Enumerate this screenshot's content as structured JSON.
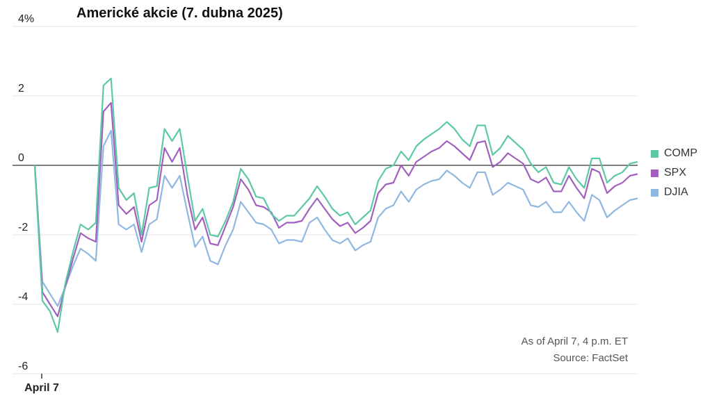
{
  "chart_data": {
    "type": "line",
    "title": "Americké akcie (7. dubna 2025)",
    "ylim": [
      -6,
      4
    ],
    "yticks": [
      {
        "value": 4,
        "label": "4%"
      },
      {
        "value": 2,
        "label": "2"
      },
      {
        "value": 0,
        "label": "0"
      },
      {
        "value": -2,
        "label": "-2"
      },
      {
        "value": -4,
        "label": "-4"
      },
      {
        "value": -6,
        "label": "-6"
      }
    ],
    "x_tick_label": "April 7",
    "grid": true,
    "legend_position": "right",
    "series": [
      {
        "name": "COMP",
        "color": "#5cc8a5",
        "values": [
          0,
          -3.9,
          -4.2,
          -4.8,
          -3.4,
          -2.5,
          -1.7,
          -1.85,
          -1.65,
          2.3,
          2.5,
          -0.65,
          -1.0,
          -0.8,
          -2.0,
          -0.65,
          -0.6,
          1.05,
          0.7,
          1.05,
          -0.3,
          -1.6,
          -1.25,
          -2.0,
          -2.05,
          -1.6,
          -1.05,
          -0.1,
          -0.4,
          -0.9,
          -0.95,
          -1.4,
          -1.6,
          -1.45,
          -1.45,
          -1.2,
          -0.95,
          -0.6,
          -0.9,
          -1.25,
          -1.45,
          -1.35,
          -1.7,
          -1.5,
          -1.3,
          -0.45,
          -0.1,
          0.0,
          0.4,
          0.15,
          0.55,
          0.75,
          0.9,
          1.05,
          1.25,
          1.05,
          0.75,
          0.55,
          1.15,
          1.15,
          0.3,
          0.5,
          0.85,
          0.65,
          0.45,
          0.05,
          -0.2,
          -0.05,
          -0.5,
          -0.55,
          -0.05,
          -0.4,
          -0.65,
          0.2,
          0.2,
          -0.5,
          -0.3,
          -0.2,
          0.05,
          0.1
        ]
      },
      {
        "name": "SPX",
        "color": "#a25fbf",
        "values": [
          0,
          -3.65,
          -4.0,
          -4.35,
          -3.5,
          -2.7,
          -1.95,
          -2.1,
          -2.2,
          1.55,
          1.8,
          -1.15,
          -1.4,
          -1.2,
          -2.2,
          -1.15,
          -1.0,
          0.5,
          0.1,
          0.5,
          -0.85,
          -1.85,
          -1.5,
          -2.25,
          -2.3,
          -1.75,
          -1.2,
          -0.4,
          -0.7,
          -1.15,
          -1.2,
          -1.35,
          -1.8,
          -1.65,
          -1.65,
          -1.6,
          -1.25,
          -0.95,
          -1.25,
          -1.55,
          -1.75,
          -1.65,
          -1.95,
          -1.8,
          -1.6,
          -0.8,
          -0.55,
          -0.5,
          0.0,
          -0.3,
          0.1,
          0.25,
          0.4,
          0.5,
          0.7,
          0.55,
          0.35,
          0.15,
          0.65,
          0.7,
          -0.05,
          0.1,
          0.35,
          0.2,
          0.05,
          -0.4,
          -0.5,
          -0.35,
          -0.75,
          -0.75,
          -0.3,
          -0.65,
          -0.95,
          -0.1,
          -0.2,
          -0.8,
          -0.6,
          -0.5,
          -0.3,
          -0.25
        ]
      },
      {
        "name": "DJIA",
        "color": "#8fb8e0",
        "values": [
          0,
          -3.35,
          -3.7,
          -4.05,
          -3.5,
          -2.9,
          -2.4,
          -2.55,
          -2.75,
          0.55,
          1.0,
          -1.7,
          -1.85,
          -1.7,
          -2.5,
          -1.7,
          -1.55,
          -0.3,
          -0.65,
          -0.3,
          -1.35,
          -2.35,
          -2.05,
          -2.75,
          -2.85,
          -2.3,
          -1.85,
          -1.05,
          -1.35,
          -1.65,
          -1.7,
          -1.85,
          -2.25,
          -2.15,
          -2.15,
          -2.2,
          -1.65,
          -1.5,
          -1.85,
          -2.15,
          -2.25,
          -2.1,
          -2.45,
          -2.3,
          -2.2,
          -1.5,
          -1.25,
          -1.15,
          -0.75,
          -1.05,
          -0.7,
          -0.55,
          -0.45,
          -0.4,
          -0.15,
          -0.3,
          -0.5,
          -0.65,
          -0.2,
          -0.2,
          -0.85,
          -0.7,
          -0.5,
          -0.6,
          -0.7,
          -1.15,
          -1.2,
          -1.05,
          -1.35,
          -1.35,
          -1.05,
          -1.35,
          -1.6,
          -0.85,
          -1.0,
          -1.5,
          -1.3,
          -1.15,
          -1.0,
          -0.95
        ]
      }
    ]
  },
  "notes": {
    "as_of": "As of April 7, 4 p.m. ET",
    "source": "Source: FactSet"
  }
}
